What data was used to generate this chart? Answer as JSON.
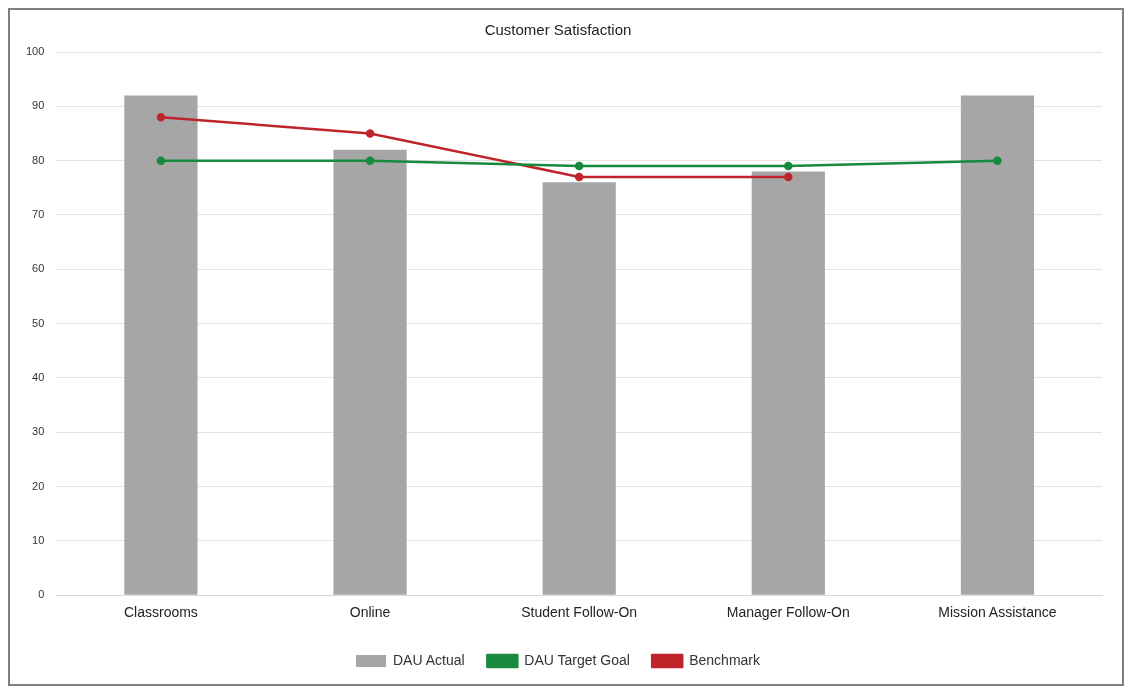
{
  "chart_data": {
    "type": "bar",
    "title": "Customer Satisfaction",
    "categories": [
      "Classrooms",
      "Online",
      "Student Follow-On",
      "Manager Follow-On",
      "Mission Assistance"
    ],
    "series": [
      {
        "name": "DAU Actual",
        "color": "#a6a6a6",
        "values": [
          92,
          82,
          76,
          78,
          92
        ]
      },
      {
        "name": "DAU Target Goal",
        "type": "line",
        "color": "#178a3e",
        "values": [
          80,
          80,
          79,
          79,
          80
        ]
      },
      {
        "name": "Benchmark",
        "type": "line",
        "color": "#c0242b",
        "values": [
          88,
          85,
          77,
          77,
          null
        ]
      }
    ],
    "ylim": [
      0,
      100
    ],
    "yticks": [
      0,
      10,
      20,
      30,
      40,
      50,
      60,
      70,
      80,
      90,
      100
    ],
    "grid": "y",
    "legend": "bottom",
    "marker": "circle",
    "line_style": "solid"
  }
}
